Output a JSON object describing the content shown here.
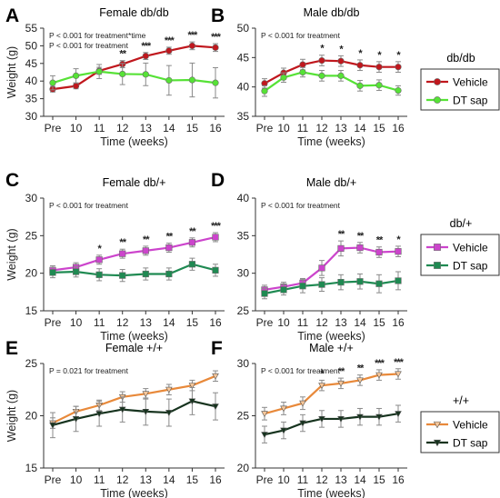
{
  "chart_data": [
    {
      "type": "line",
      "panel": "A",
      "title": "Female db/db",
      "xlabel": "Time (weeks)",
      "ylabel": "Weight (g)",
      "notes": [
        "P < 0.001 for treatment*time",
        "P < 0.001 for treatment"
      ],
      "categories": [
        "Pre",
        "10",
        "11",
        "12",
        "13",
        "14",
        "15",
        "16"
      ],
      "ylim": [
        30,
        55
      ],
      "yticks": [
        30,
        35,
        40,
        45,
        50,
        55
      ],
      "series": [
        {
          "name": "Vehicle",
          "values": [
            37.7,
            38.6,
            42.9,
            44.8,
            47.1,
            48.6,
            50.0,
            49.5
          ],
          "err": [
            0.8,
            0.8,
            1.0,
            1.0,
            1.0,
            1.0,
            1.1,
            1.1
          ]
        },
        {
          "name": "DT sap",
          "values": [
            39.5,
            41.5,
            42.7,
            42.0,
            41.9,
            40.2,
            40.3,
            39.5
          ],
          "err": [
            2.0,
            2.0,
            2.0,
            3.0,
            3.2,
            4.2,
            4.8,
            4.3
          ]
        }
      ],
      "significance": [
        "",
        "",
        "",
        "**",
        "***",
        "***",
        "***",
        "***"
      ]
    },
    {
      "type": "line",
      "panel": "B",
      "title": "Male db/db",
      "xlabel": "Time (weeks)",
      "ylabel": "",
      "notes": [
        "P < 0.001 for treatment"
      ],
      "categories": [
        "Pre",
        "10",
        "11",
        "12",
        "13",
        "14",
        "15",
        "16"
      ],
      "ylim": [
        35,
        50
      ],
      "yticks": [
        35,
        40,
        45,
        50
      ],
      "series": [
        {
          "name": "Vehicle",
          "values": [
            40.6,
            42.4,
            43.8,
            44.5,
            44.4,
            43.7,
            43.4,
            43.4
          ],
          "err": [
            0.8,
            0.8,
            0.9,
            0.9,
            0.9,
            0.9,
            0.9,
            0.9
          ]
        },
        {
          "name": "DT sap",
          "values": [
            39.3,
            41.6,
            42.5,
            41.9,
            41.9,
            40.2,
            40.3,
            39.4
          ],
          "err": [
            0.9,
            0.8,
            0.8,
            0.9,
            0.9,
            0.9,
            0.9,
            0.8
          ]
        }
      ],
      "significance": [
        "",
        "",
        "",
        "*",
        "*",
        "*",
        "*",
        "*"
      ]
    },
    {
      "type": "line",
      "panel": "C",
      "title": "Female db/+",
      "xlabel": "Time (weeks)",
      "ylabel": "Weight (g)",
      "notes": [
        "P < 0.001 for treatment"
      ],
      "categories": [
        "Pre",
        "10",
        "11",
        "12",
        "13",
        "14",
        "15",
        "16"
      ],
      "ylim": [
        15,
        30
      ],
      "yticks": [
        15,
        20,
        25,
        30
      ],
      "series": [
        {
          "name": "Vehicle",
          "values": [
            20.4,
            20.8,
            21.8,
            22.6,
            23.0,
            23.4,
            24.1,
            24.8
          ],
          "err": [
            0.6,
            0.6,
            0.6,
            0.6,
            0.6,
            0.6,
            0.6,
            0.6
          ]
        },
        {
          "name": "DT sap",
          "values": [
            20.1,
            20.2,
            19.8,
            19.7,
            19.9,
            19.9,
            21.2,
            20.4
          ],
          "err": [
            0.7,
            0.7,
            0.8,
            0.8,
            0.8,
            0.8,
            0.8,
            0.8
          ]
        }
      ],
      "significance": [
        "",
        "",
        "*",
        "**",
        "**",
        "**",
        "**",
        "***"
      ]
    },
    {
      "type": "line",
      "panel": "D",
      "title": "Male db/+",
      "xlabel": "Time (weeks)",
      "ylabel": "",
      "notes": [
        "P < 0.001 for treatment"
      ],
      "categories": [
        "Pre",
        "10",
        "11",
        "12",
        "13",
        "14",
        "15",
        "16"
      ],
      "ylim": [
        25,
        40
      ],
      "yticks": [
        25,
        30,
        35,
        40
      ],
      "series": [
        {
          "name": "Vehicle",
          "values": [
            27.8,
            28.2,
            28.7,
            30.7,
            33.3,
            33.4,
            32.8,
            32.9
          ],
          "err": [
            0.6,
            0.6,
            0.6,
            1.0,
            1.0,
            0.7,
            0.7,
            0.7
          ]
        },
        {
          "name": "DT sap",
          "values": [
            27.3,
            27.8,
            28.3,
            28.5,
            28.8,
            28.9,
            28.6,
            29.0
          ],
          "err": [
            0.7,
            0.7,
            0.9,
            0.9,
            1.0,
            1.0,
            1.2,
            1.2
          ]
        }
      ],
      "significance": [
        "",
        "",
        "",
        "",
        "**",
        "**",
        "**",
        "*"
      ]
    },
    {
      "type": "line",
      "panel": "E",
      "title": "Female +/+",
      "xlabel": "Time (weeks)",
      "ylabel": "Weight (g)",
      "notes": [
        "P = 0.021 for treatment"
      ],
      "categories": [
        "Pre",
        "10",
        "11",
        "12",
        "13",
        "14",
        "15",
        "16"
      ],
      "ylim": [
        15,
        25
      ],
      "yticks": [
        15,
        20,
        25
      ],
      "series": [
        {
          "name": "Vehicle",
          "values": [
            19.3,
            20.4,
            21.0,
            21.8,
            22.1,
            22.5,
            22.9,
            23.8
          ],
          "err": [
            0.5,
            0.5,
            0.5,
            0.5,
            0.5,
            0.5,
            0.5,
            0.5
          ]
        },
        {
          "name": "DT sap",
          "values": [
            19.1,
            19.7,
            20.2,
            20.6,
            20.4,
            20.3,
            21.4,
            20.9
          ],
          "err": [
            1.2,
            1.2,
            1.2,
            1.2,
            1.3,
            1.3,
            1.3,
            1.3
          ]
        }
      ],
      "significance": [
        "",
        "",
        "",
        "",
        "",
        "",
        "",
        ""
      ]
    },
    {
      "type": "line",
      "panel": "F",
      "title": "Male +/+",
      "xlabel": "Time (weeks)",
      "ylabel": "",
      "notes": [
        "P < 0.001 for treatment"
      ],
      "categories": [
        "Pre",
        "10",
        "11",
        "12",
        "13",
        "14",
        "15",
        "16"
      ],
      "ylim": [
        20,
        30
      ],
      "yticks": [
        20,
        25,
        30
      ],
      "series": [
        {
          "name": "Vehicle",
          "values": [
            25.2,
            25.7,
            26.2,
            27.9,
            28.1,
            28.4,
            28.9,
            29.0
          ],
          "err": [
            0.6,
            0.6,
            0.6,
            0.5,
            0.5,
            0.5,
            0.5,
            0.5
          ]
        },
        {
          "name": "DT sap",
          "values": [
            23.2,
            23.6,
            24.3,
            24.7,
            24.7,
            24.9,
            24.9,
            25.2
          ],
          "err": [
            0.8,
            0.8,
            0.8,
            0.8,
            0.8,
            0.8,
            0.8,
            0.8
          ]
        }
      ],
      "significance": [
        "",
        "",
        "",
        "*",
        "**",
        "**",
        "***",
        "***"
      ]
    }
  ],
  "legends": [
    {
      "group": "db/db",
      "entries": [
        {
          "name": "Vehicle",
          "color": "#c0171d",
          "marker": "circle"
        },
        {
          "name": "DT sap",
          "color": "#56e236",
          "marker": "circle"
        }
      ]
    },
    {
      "group": "db/+",
      "entries": [
        {
          "name": "Vehicle",
          "color": "#cc44cc",
          "marker": "square"
        },
        {
          "name": "DT sap",
          "color": "#1f8a52",
          "marker": "square"
        }
      ]
    },
    {
      "group": "+/+",
      "entries": [
        {
          "name": "Vehicle",
          "color": "#e8893a",
          "marker": "triangle-down"
        },
        {
          "name": "DT sap",
          "color": "#16331e",
          "marker": "triangle-down"
        }
      ]
    }
  ],
  "colors": {
    "db_db_vehicle": "#c0171d",
    "db_db_dtsap": "#56e236",
    "db_plus_vehicle": "#cc44cc",
    "db_plus_dtsap": "#1f8a52",
    "plus_plus_vehicle": "#e8893a",
    "plus_plus_dtsap": "#16331e"
  }
}
